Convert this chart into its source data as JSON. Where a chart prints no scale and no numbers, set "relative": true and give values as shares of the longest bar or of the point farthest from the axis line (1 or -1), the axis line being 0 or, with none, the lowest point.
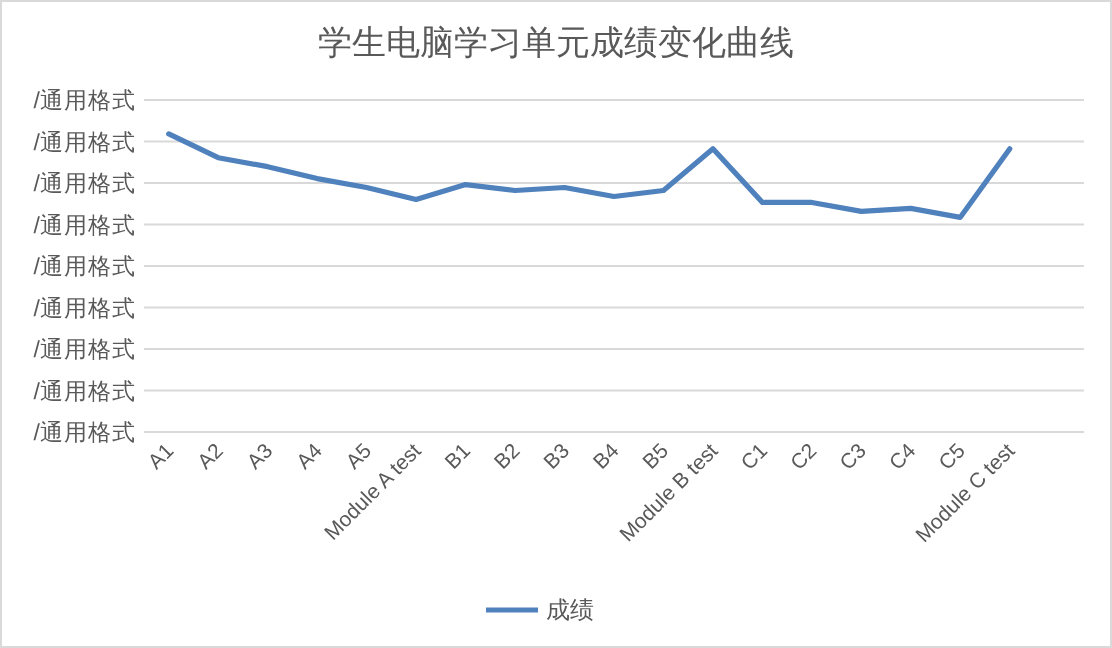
{
  "chart_data": {
    "type": "line",
    "title": "学生电脑学习单元成绩变化曲线",
    "categories": [
      "A1",
      "A2",
      "A3",
      "A4",
      "A5",
      "Module A test",
      "B1",
      "B2",
      "B3",
      "B4",
      "B5",
      "Module B test",
      "C1",
      "C2",
      "C3",
      "C4",
      "C5",
      "Module C test"
    ],
    "series": [
      {
        "name": "成绩",
        "color": "#4f81bd",
        "values": [
          1,
          0.92,
          0.89,
          0.85,
          0.82,
          0.78,
          0.83,
          0.81,
          0.82,
          0.79,
          0.81,
          0.95,
          0.77,
          0.77,
          0.74,
          0.75,
          0.72,
          0.95
        ]
      }
    ],
    "relative": true,
    "annotations": [
      "/通用格式",
      "/通用格式",
      "/通用格式",
      "/通用格式",
      "/通用格式",
      "/通用格式",
      "/通用格式",
      "/通用格式",
      "/通用格式"
    ],
    "grid": "y",
    "legend": "bottom"
  }
}
